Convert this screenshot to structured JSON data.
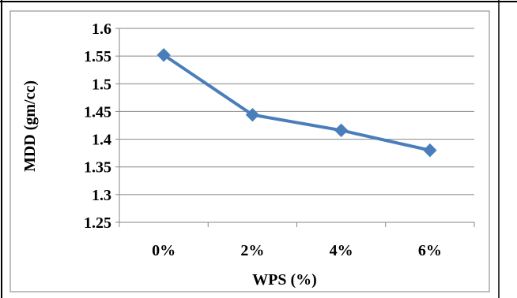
{
  "chart_data": {
    "type": "line",
    "categories": [
      "0%",
      "2%",
      "4%",
      "6%"
    ],
    "series": [
      {
        "values": [
          1.552,
          1.444,
          1.416,
          1.38
        ]
      }
    ],
    "xlabel": "WPS (%)",
    "ylabel": "MDD (gm/cc)",
    "ylim": [
      1.25,
      1.6
    ],
    "yticks": [
      "1.25",
      "1.3",
      "1.35",
      "1.4",
      "1.45",
      "1.5",
      "1.55",
      "1.6"
    ],
    "grid": true,
    "legend": "none",
    "series_color": "#4a7ebb",
    "marker": "diamond"
  }
}
